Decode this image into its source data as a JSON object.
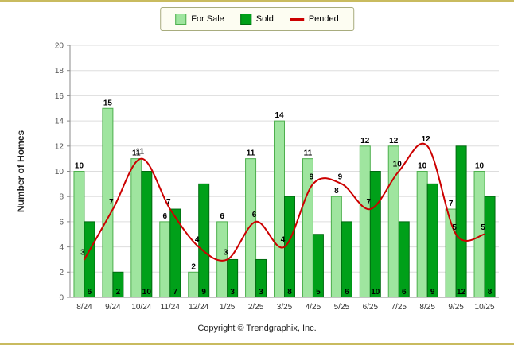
{
  "page": {
    "footer": "Copyright © Trendgraphix, Inc.",
    "background": "#FFFFFF",
    "frame_color": "#C9BB5F"
  },
  "legend": {
    "position": "top-center",
    "items": [
      "For Sale",
      "Sold",
      "Pended"
    ]
  },
  "chart_data": {
    "type": "bar",
    "title": "",
    "xlabel": "",
    "ylabel": "Number of Homes",
    "ylim": [
      0,
      20
    ],
    "ytick_step": 2,
    "grid": true,
    "legend_position": "top-center",
    "categories": [
      "8/24",
      "9/24",
      "10/24",
      "11/24",
      "12/24",
      "1/25",
      "2/25",
      "3/25",
      "4/25",
      "5/25",
      "6/25",
      "7/25",
      "8/25",
      "9/25",
      "10/25"
    ],
    "series": [
      {
        "name": "For Sale",
        "type": "bar",
        "color": "#9FE59F",
        "border": "#4DAF4D",
        "values": [
          10,
          15,
          11,
          6,
          2,
          6,
          11,
          14,
          11,
          8,
          12,
          12,
          10,
          7,
          10
        ]
      },
      {
        "name": "Sold",
        "type": "bar",
        "color": "#00A019",
        "border": "#006B10",
        "values": [
          6,
          2,
          10,
          7,
          9,
          3,
          3,
          8,
          5,
          6,
          10,
          6,
          9,
          12,
          8
        ]
      },
      {
        "name": "Pended",
        "type": "line",
        "color": "#CC0000",
        "values": [
          3,
          7,
          11,
          7,
          4,
          3,
          6,
          4,
          9,
          9,
          7,
          10,
          12,
          5,
          5
        ]
      }
    ],
    "style": {
      "grid_color": "#DDDDDD",
      "axis_color": "#888888",
      "tick_label_color": "#555555",
      "x_label_color": "#333333",
      "value_label_color": "#000000"
    }
  }
}
